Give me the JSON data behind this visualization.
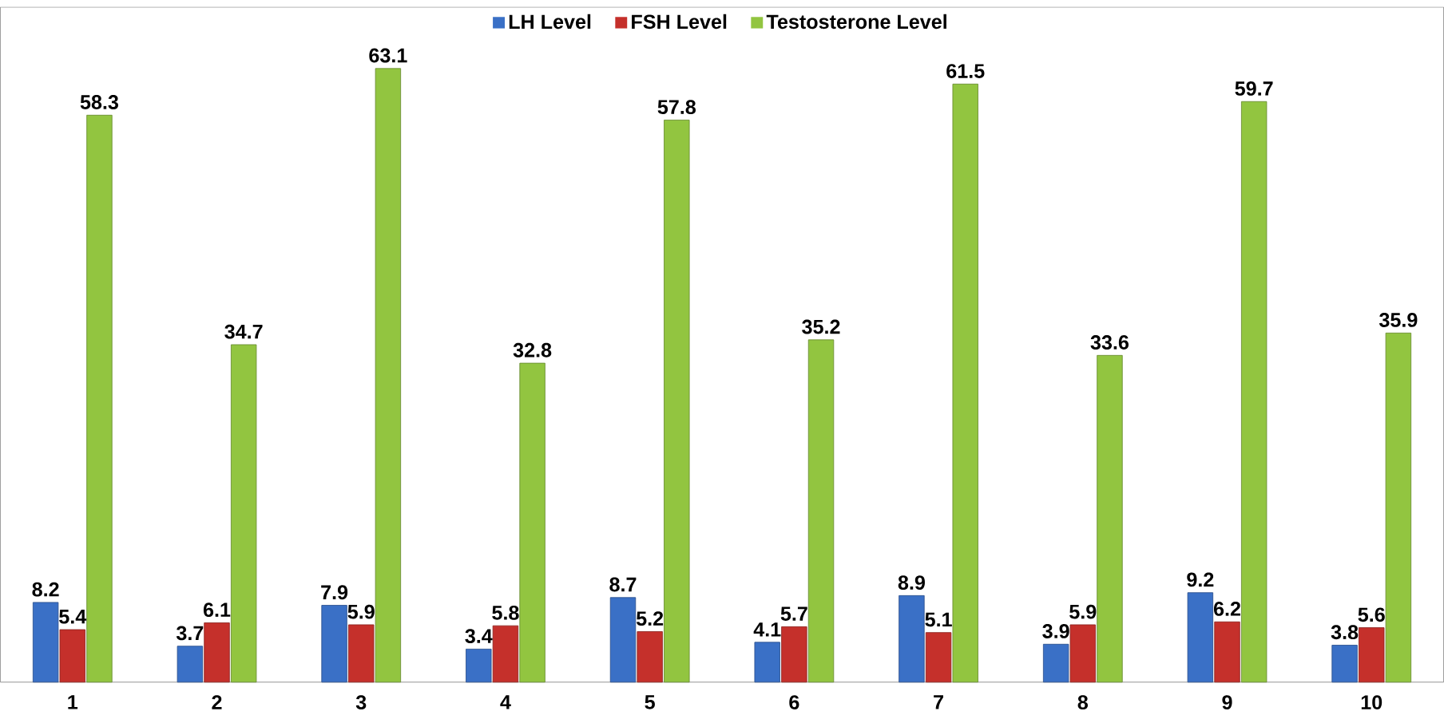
{
  "chart_data": {
    "type": "bar",
    "categories": [
      "1",
      "2",
      "3",
      "4",
      "5",
      "6",
      "7",
      "8",
      "9",
      "10"
    ],
    "series": [
      {
        "name": "LH Level",
        "color": "#3a70c6",
        "values": [
          8.2,
          3.7,
          7.9,
          3.4,
          8.7,
          4.1,
          8.9,
          3.9,
          9.2,
          3.8
        ]
      },
      {
        "name": "FSH Level",
        "color": "#c5302b",
        "values": [
          5.4,
          6.1,
          5.9,
          5.8,
          5.2,
          5.7,
          5.1,
          5.9,
          6.2,
          5.6
        ]
      },
      {
        "name": "Testosterone Level",
        "color": "#92c540",
        "values": [
          58.3,
          34.7,
          63.1,
          32.8,
          57.8,
          35.2,
          61.5,
          33.6,
          59.7,
          35.9
        ]
      }
    ],
    "data_labels": true,
    "legend": "top",
    "grid": false,
    "tick_labels": "x"
  }
}
